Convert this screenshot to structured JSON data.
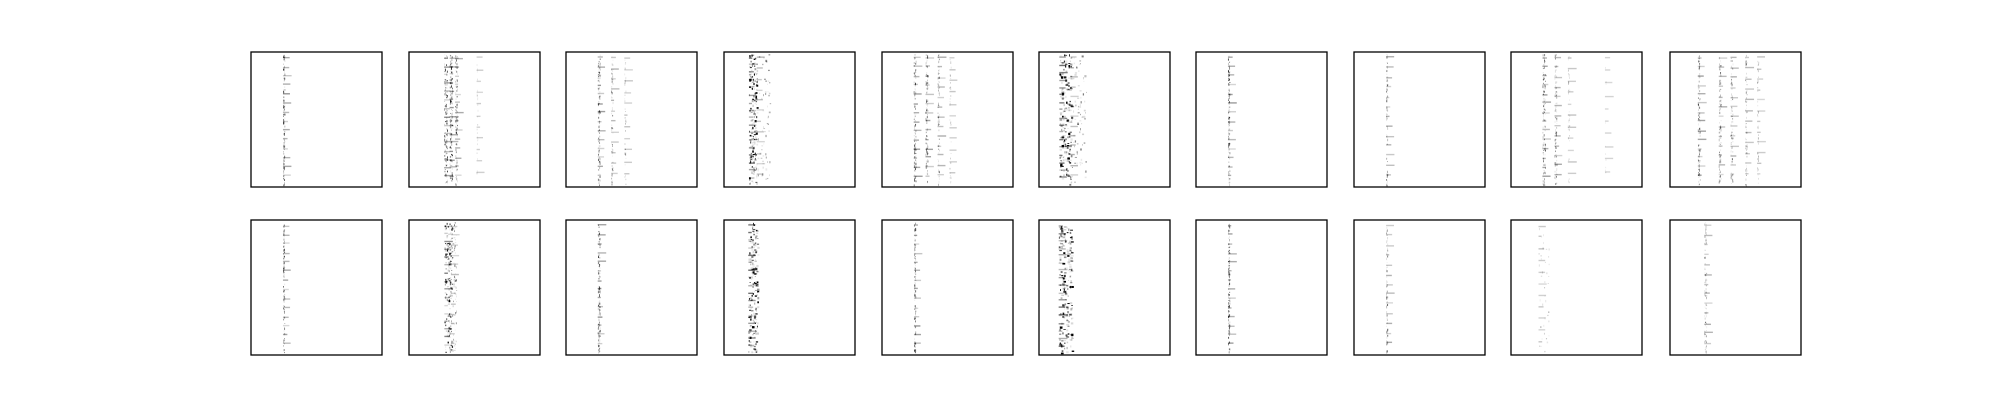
{
  "chart_data": {
    "type": "heatmap",
    "description_rows": 2,
    "description_cols": 10,
    "colormap": "gray_r",
    "axes_ticks": false,
    "grid": false,
    "legend": "none",
    "panels": [
      {
        "id": "r1c1",
        "row": 1,
        "col": 1,
        "columns": [
          {
            "x": 0.25,
            "density": 0.55,
            "width": 0.004,
            "spread": 0.006
          }
        ]
      },
      {
        "id": "r1c2",
        "row": 1,
        "col": 2,
        "columns": [
          {
            "x": 0.28,
            "density": 0.6,
            "width": 0.005,
            "spread": 0.012
          },
          {
            "x": 0.32,
            "density": 0.6,
            "width": 0.004,
            "spread": 0.01
          },
          {
            "x": 0.36,
            "density": 0.45,
            "width": 0.004,
            "spread": 0.008
          },
          {
            "x": 0.52,
            "density": 0.12,
            "width": 0.003,
            "spread": 0.004
          }
        ]
      },
      {
        "id": "r1c3",
        "row": 1,
        "col": 3,
        "columns": [
          {
            "x": 0.25,
            "density": 0.5,
            "width": 0.004,
            "spread": 0.008
          },
          {
            "x": 0.35,
            "density": 0.3,
            "width": 0.004,
            "spread": 0.006
          },
          {
            "x": 0.45,
            "density": 0.18,
            "width": 0.003,
            "spread": 0.005
          }
        ]
      },
      {
        "id": "r1c4",
        "row": 1,
        "col": 4,
        "columns": [
          {
            "x": 0.22,
            "density": 0.9,
            "width": 0.012,
            "spread": 0.03
          },
          {
            "x": 0.3,
            "density": 0.3,
            "width": 0.01,
            "spread": 0.05
          }
        ]
      },
      {
        "id": "r1c5",
        "row": 1,
        "col": 5,
        "columns": [
          {
            "x": 0.25,
            "density": 0.5,
            "width": 0.005,
            "spread": 0.008
          },
          {
            "x": 0.34,
            "density": 0.45,
            "width": 0.004,
            "spread": 0.008
          },
          {
            "x": 0.43,
            "density": 0.35,
            "width": 0.004,
            "spread": 0.006
          },
          {
            "x": 0.52,
            "density": 0.15,
            "width": 0.003,
            "spread": 0.005
          }
        ]
      },
      {
        "id": "r1c6",
        "row": 1,
        "col": 6,
        "columns": [
          {
            "x": 0.2,
            "density": 0.9,
            "width": 0.015,
            "spread": 0.045
          },
          {
            "x": 0.3,
            "density": 0.35,
            "width": 0.012,
            "spread": 0.06
          }
        ]
      },
      {
        "id": "r1c7",
        "row": 1,
        "col": 7,
        "columns": [
          {
            "x": 0.25,
            "density": 0.55,
            "width": 0.004,
            "spread": 0.006
          }
        ]
      },
      {
        "id": "r1c8",
        "row": 1,
        "col": 8,
        "columns": [
          {
            "x": 0.25,
            "density": 0.35,
            "width": 0.004,
            "spread": 0.005
          }
        ]
      },
      {
        "id": "r1c9",
        "row": 1,
        "col": 9,
        "columns": [
          {
            "x": 0.25,
            "density": 0.5,
            "width": 0.005,
            "spread": 0.01
          },
          {
            "x": 0.34,
            "density": 0.4,
            "width": 0.004,
            "spread": 0.008
          },
          {
            "x": 0.44,
            "density": 0.18,
            "width": 0.003,
            "spread": 0.006
          },
          {
            "x": 0.72,
            "density": 0.05,
            "width": 0.002,
            "spread": 0.003
          }
        ]
      },
      {
        "id": "r1c10",
        "row": 1,
        "col": 10,
        "columns": [
          {
            "x": 0.22,
            "density": 0.45,
            "width": 0.004,
            "spread": 0.008
          },
          {
            "x": 0.38,
            "density": 0.4,
            "width": 0.004,
            "spread": 0.008
          },
          {
            "x": 0.47,
            "density": 0.35,
            "width": 0.004,
            "spread": 0.008
          },
          {
            "x": 0.58,
            "density": 0.3,
            "width": 0.004,
            "spread": 0.006
          },
          {
            "x": 0.67,
            "density": 0.2,
            "width": 0.003,
            "spread": 0.005
          }
        ]
      },
      {
        "id": "r2c1",
        "row": 2,
        "col": 1,
        "columns": [
          {
            "x": 0.25,
            "density": 0.5,
            "width": 0.005,
            "spread": 0.006
          }
        ]
      },
      {
        "id": "r2c2",
        "row": 2,
        "col": 2,
        "columns": [
          {
            "x": 0.3,
            "density": 0.75,
            "width": 0.01,
            "spread": 0.03
          },
          {
            "x": 0.34,
            "density": 0.4,
            "width": 0.006,
            "spread": 0.02
          }
        ]
      },
      {
        "id": "r2c3",
        "row": 2,
        "col": 3,
        "columns": [
          {
            "x": 0.25,
            "density": 0.55,
            "width": 0.005,
            "spread": 0.008
          }
        ]
      },
      {
        "id": "r2c4",
        "row": 2,
        "col": 4,
        "columns": [
          {
            "x": 0.22,
            "density": 0.9,
            "width": 0.014,
            "spread": 0.035
          }
        ]
      },
      {
        "id": "r2c5",
        "row": 2,
        "col": 5,
        "columns": [
          {
            "x": 0.25,
            "density": 0.5,
            "width": 0.004,
            "spread": 0.006
          }
        ]
      },
      {
        "id": "r2c6",
        "row": 2,
        "col": 6,
        "columns": [
          {
            "x": 0.2,
            "density": 0.9,
            "width": 0.016,
            "spread": 0.05
          }
        ]
      },
      {
        "id": "r2c7",
        "row": 2,
        "col": 7,
        "columns": [
          {
            "x": 0.25,
            "density": 0.55,
            "width": 0.004,
            "spread": 0.006
          }
        ]
      },
      {
        "id": "r2c8",
        "row": 2,
        "col": 8,
        "columns": [
          {
            "x": 0.25,
            "density": 0.4,
            "width": 0.004,
            "spread": 0.005
          }
        ]
      },
      {
        "id": "r2c9",
        "row": 2,
        "col": 9,
        "columns": [
          {
            "x": 0.25,
            "density": 0.18,
            "width": 0.008,
            "spread": 0.04
          }
        ]
      },
      {
        "id": "r2c10",
        "row": 2,
        "col": 10,
        "columns": [
          {
            "x": 0.27,
            "density": 0.35,
            "width": 0.005,
            "spread": 0.008
          }
        ]
      }
    ]
  }
}
